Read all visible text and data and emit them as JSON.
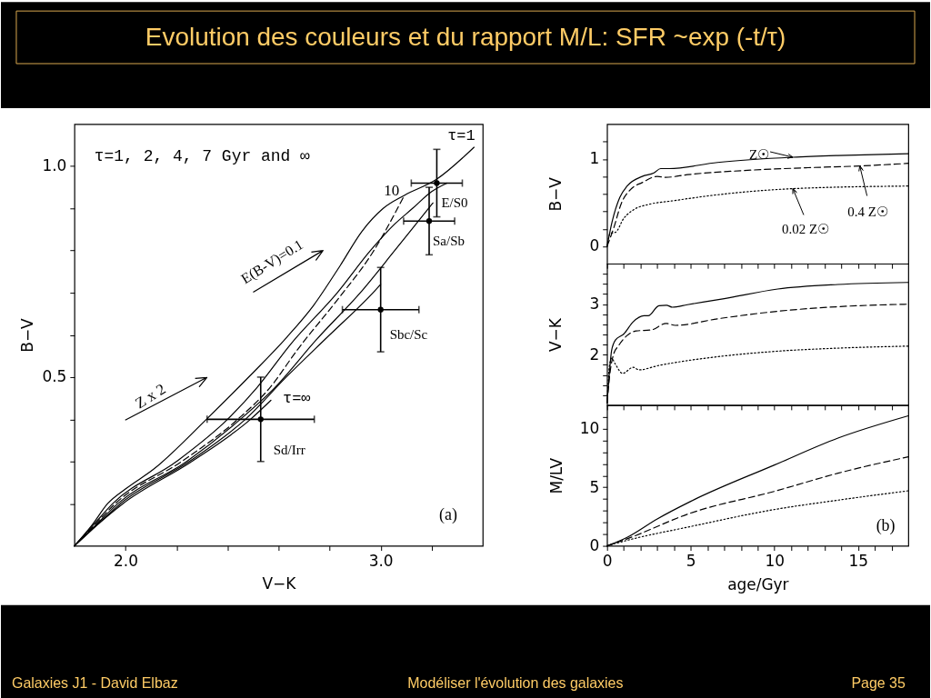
{
  "chart_data": [
    {
      "type": "line",
      "title": "Evolution des couleurs et du rapport M/L: SFR ~exp (-t/τ)",
      "xlabel": "V−K",
      "ylabel": "B−V",
      "xlim": [
        1.8,
        3.4
      ],
      "ylim": [
        0.1,
        1.1
      ],
      "xticks": [
        {
          "value": 2,
          "label": "2.0"
        },
        {
          "value": 2.2,
          "label": null
        },
        {
          "value": 2.4,
          "label": null
        },
        {
          "value": 2.6,
          "label": null
        },
        {
          "value": 2.8,
          "label": null
        },
        {
          "value": 3,
          "label": "3.0"
        },
        {
          "value": 3.2,
          "label": null
        }
      ],
      "yticks": [
        {
          "value": 0.2,
          "label": null
        },
        {
          "value": 0.3,
          "label": null
        },
        {
          "value": 0.4,
          "label": null
        },
        {
          "value": 0.5,
          "label": "0.5"
        },
        {
          "value": 0.6,
          "label": null
        },
        {
          "value": 0.7,
          "label": null
        },
        {
          "value": 0.8,
          "label": null
        },
        {
          "value": 0.9,
          "label": null
        },
        {
          "value": 1,
          "label": "1.0"
        }
      ],
      "line_style": "solid",
      "series": [
        {
          "name": "τ=1",
          "color": "#000000",
          "x": [
            1.8,
            1.87,
            1.93,
            2.005,
            2.109,
            2.319,
            2.486,
            2.633,
            2.737,
            2.842,
            2.926,
            3.01,
            3.093,
            3.219,
            3.366
          ],
          "values": [
            0.1,
            0.15,
            0.2,
            0.237,
            0.281,
            0.401,
            0.502,
            0.595,
            0.67,
            0.765,
            0.845,
            0.9,
            0.931,
            0.969,
            1.045
          ]
        },
        {
          "color": "#000000",
          "x": [
            1.8,
            1.875,
            1.95,
            2.2,
            2.4,
            2.515,
            2.65,
            2.83,
            2.96,
            3.05,
            3.125,
            3.2,
            3.26
          ],
          "values": [
            0.1,
            0.15,
            0.2,
            0.3,
            0.4,
            0.475,
            0.58,
            0.7,
            0.8,
            0.86,
            0.9,
            0.94,
            0.96
          ]
        },
        {
          "color": "#000000",
          "line_style": "dashed",
          "x": [
            1.8,
            1.88,
            1.96,
            2.22,
            2.44,
            2.566,
            2.674,
            2.842,
            2.966,
            3.093
          ],
          "values": [
            0.1,
            0.15,
            0.2,
            0.3,
            0.4,
            0.475,
            0.565,
            0.692,
            0.793,
            0.931
          ]
        },
        {
          "color": "#000000",
          "x": [
            1.8,
            1.885,
            1.97,
            2.24,
            2.45,
            2.585,
            2.75,
            2.92,
            3.055,
            3.205
          ],
          "values": [
            0.1,
            0.15,
            0.2,
            0.3,
            0.4,
            0.475,
            0.59,
            0.7,
            0.8,
            0.913
          ]
        },
        {
          "color": "#000000",
          "x": [
            1.8,
            1.89,
            1.98,
            2.25,
            2.47,
            2.63,
            2.8,
            2.97,
            3.0
          ],
          "values": [
            0.1,
            0.15,
            0.2,
            0.3,
            0.4,
            0.5,
            0.6,
            0.7,
            0.72
          ]
        },
        {
          "name": "τ=∞",
          "color": "#000000",
          "x": [
            1.8,
            1.89,
            1.99,
            2.26,
            2.49,
            2.57
          ],
          "values": [
            0.1,
            0.15,
            0.2,
            0.3,
            0.4,
            0.445
          ]
        },
        {
          "type": "scatter",
          "marker": "circle",
          "color": "#000000",
          "x": [
            3.22,
            3.19,
            3.0,
            2.53
          ],
          "values": [
            0.96,
            0.87,
            0.66,
            0.4
          ],
          "errors": [
            0.08,
            0.08,
            0.1,
            0.1
          ],
          "xerrors": [
            0.1,
            0.1,
            0.15,
            0.21
          ]
        }
      ],
      "annotations": [
        "τ=1, 2, 4, 7 Gyr and ∞",
        {
          "text": "10",
          "x": 3.093,
          "y": 0.931
        },
        {
          "text": "E/S0",
          "x": 3.22,
          "y": 0.96
        },
        {
          "text": "Sa/Sb",
          "x": 3.19,
          "y": 0.87
        },
        {
          "text": "Sbc/Sc",
          "x": 3.0,
          "y": 0.66
        },
        {
          "text": "Sd/Irr",
          "x": 2.53,
          "y": 0.4
        },
        "E(B-V)=0.1",
        "Z x 2",
        "(a)"
      ]
    },
    {
      "type": "line",
      "ylabel": "B−V",
      "xlim": [
        0,
        18
      ],
      "ylim": [
        -0.2,
        1.4
      ],
      "tick_labels": "y",
      "line_style": "solid",
      "xticks": [
        0,
        {
          "value": 1,
          "label": null
        },
        {
          "value": 2,
          "label": null
        },
        {
          "value": 3,
          "label": null
        },
        {
          "value": 4,
          "label": null
        },
        5,
        {
          "value": 6,
          "label": null
        },
        {
          "value": 7,
          "label": null
        },
        {
          "value": 8,
          "label": null
        },
        {
          "value": 9,
          "label": null
        },
        10,
        {
          "value": 11,
          "label": null
        },
        {
          "value": 12,
          "label": null
        },
        {
          "value": 13,
          "label": null
        },
        {
          "value": 14,
          "label": null
        },
        15,
        {
          "value": 16,
          "label": null
        },
        {
          "value": 17,
          "label": null
        }
      ],
      "yticks": [
        0,
        {
          "value": 0.2,
          "label": null
        },
        {
          "value": 0.4,
          "label": null
        },
        {
          "value": 0.6,
          "label": null
        },
        {
          "value": 0.8,
          "label": null
        },
        1,
        {
          "value": 1.2,
          "label": null
        }
      ],
      "series": [
        {
          "color": "#000000",
          "x": [
            0,
            0.3,
            0.76,
            1.2,
            2.1,
            2.8,
            3.2,
            3.7,
            6.6,
            11.1,
            13.8,
            18
          ],
          "values": [
            0,
            0.28,
            0.56,
            0.69,
            0.8,
            0.84,
            0.89,
            0.89,
            0.96,
            1.02,
            1.04,
            1.06
          ]
        },
        {
          "color": "#000000",
          "line_style": "dashed",
          "x": [
            0,
            0.4,
            0.85,
            1.4,
            2.1,
            3.0,
            3.5,
            4.8,
            8.4,
            12,
            15.1,
            18
          ],
          "values": [
            0,
            0.21,
            0.49,
            0.65,
            0.73,
            0.8,
            0.79,
            0.82,
            0.87,
            0.9,
            0.92,
            0.95
          ]
        },
        {
          "color": "#000000",
          "line_style": "dotted",
          "x": [
            0,
            0.2,
            0.5,
            1.0,
            1.6,
            2.5,
            3.9,
            6.6,
            11.1,
            18
          ],
          "values": [
            0,
            0.15,
            0.16,
            0.32,
            0.42,
            0.48,
            0.52,
            0.59,
            0.66,
            0.69
          ]
        }
      ],
      "annotations": [
        {
          "text": "Z☉",
          "x": 11.1,
          "y": 1.02
        },
        {
          "text": "0.4 Z☉",
          "x": 15.1,
          "y": 0.92
        },
        {
          "text": "0.02 Z☉",
          "x": 11.1,
          "y": 0.66
        }
      ]
    },
    {
      "type": "line",
      "ylabel": "V−K",
      "xlim": [
        0,
        18
      ],
      "ylim": [
        1,
        3.8
      ],
      "tick_labels": "y",
      "line_style": "solid",
      "xticks": [
        0,
        {
          "value": 1,
          "label": null
        },
        {
          "value": 2,
          "label": null
        },
        {
          "value": 3,
          "label": null
        },
        {
          "value": 4,
          "label": null
        },
        5,
        {
          "value": 6,
          "label": null
        },
        {
          "value": 7,
          "label": null
        },
        {
          "value": 8,
          "label": null
        },
        {
          "value": 9,
          "label": null
        },
        10,
        {
          "value": 11,
          "label": null
        },
        {
          "value": 12,
          "label": null
        },
        {
          "value": 13,
          "label": null
        },
        {
          "value": 14,
          "label": null
        },
        15,
        {
          "value": 16,
          "label": null
        },
        {
          "value": 17,
          "label": null
        }
      ],
      "yticks": [
        {
          "value": 1.2,
          "label": null
        },
        {
          "value": 1.4,
          "label": null
        },
        {
          "value": 1.6,
          "label": null
        },
        {
          "value": 1.8,
          "label": null
        },
        2,
        {
          "value": 2.2,
          "label": null
        },
        {
          "value": 2.4,
          "label": null
        },
        {
          "value": 2.6,
          "label": null
        },
        {
          "value": 2.8,
          "label": null
        },
        3,
        {
          "value": 3.2,
          "label": null
        },
        {
          "value": 3.4,
          "label": null
        },
        {
          "value": 3.6,
          "label": null
        }
      ],
      "series": [
        {
          "color": "#000000",
          "x": [
            0,
            0.13,
            0.27,
            0.5,
            1.0,
            1.56,
            2.2,
            2.46,
            3.1,
            3.55,
            3.9,
            4.8,
            7.0,
            10.2,
            13.8,
            18
          ],
          "values": [
            1.05,
            1.6,
            2.08,
            2.29,
            2.41,
            2.65,
            2.77,
            2.77,
            2.97,
            2.98,
            2.94,
            2.99,
            3.11,
            3.3,
            3.39,
            3.43
          ]
        },
        {
          "color": "#000000",
          "line_style": "dashed",
          "x": [
            0,
            0.2,
            0.4,
            0.67,
            1.2,
            1.74,
            2.64,
            3.54,
            4.08,
            6.6,
            10.2,
            13.8,
            18
          ],
          "values": [
            1.05,
            1.7,
            2.02,
            2.17,
            2.38,
            2.47,
            2.49,
            2.62,
            2.58,
            2.71,
            2.86,
            2.95,
            3.0
          ]
        },
        {
          "color": "#000000",
          "line_style": "dotted",
          "x": [
            0,
            0.15,
            0.27,
            0.5,
            0.93,
            1.56,
            1.92,
            3.0,
            6.6,
            10.2,
            13.8,
            18
          ],
          "values": [
            1.05,
            1.8,
            1.93,
            1.81,
            1.63,
            1.75,
            1.7,
            1.78,
            1.96,
            2.07,
            2.13,
            2.17
          ]
        }
      ]
    },
    {
      "type": "line",
      "xlabel": "age/Gyr",
      "ylabel": "M/LV",
      "xlim": [
        0,
        18
      ],
      "ylim": [
        0,
        12
      ],
      "line_style": "solid",
      "xticks": [
        0,
        {
          "value": 1,
          "label": null
        },
        {
          "value": 2,
          "label": null
        },
        {
          "value": 3,
          "label": null
        },
        {
          "value": 4,
          "label": null
        },
        5,
        {
          "value": 6,
          "label": null
        },
        {
          "value": 7,
          "label": null
        },
        {
          "value": 8,
          "label": null
        },
        {
          "value": 9,
          "label": null
        },
        10,
        {
          "value": 11,
          "label": null
        },
        {
          "value": 12,
          "label": null
        },
        {
          "value": 13,
          "label": null
        },
        {
          "value": 14,
          "label": null
        },
        15,
        {
          "value": 16,
          "label": null
        },
        {
          "value": 17,
          "label": null
        }
      ],
      "yticks": [
        0,
        {
          "value": 1,
          "label": null
        },
        {
          "value": 2,
          "label": null
        },
        {
          "value": 3,
          "label": null
        },
        {
          "value": 4,
          "label": null
        },
        5,
        {
          "value": 6,
          "label": null
        },
        {
          "value": 7,
          "label": null
        },
        {
          "value": 8,
          "label": null
        },
        {
          "value": 9,
          "label": null
        },
        10,
        {
          "value": 11,
          "label": null
        }
      ],
      "series": [
        {
          "color": "#000000",
          "x": [
            0,
            1.2,
            3.0,
            5.0,
            10,
            13.8,
            18
          ],
          "values": [
            0,
            0.73,
            2.3,
            3.8,
            6.9,
            9.2,
            11.1
          ]
        },
        {
          "color": "#000000",
          "line_style": "dashed",
          "x": [
            0,
            1.2,
            5,
            10,
            13.8,
            18
          ],
          "values": [
            0,
            0.6,
            2.8,
            4.65,
            6.2,
            7.6
          ]
        },
        {
          "color": "#000000",
          "line_style": "dotted",
          "x": [
            0,
            1.2,
            5,
            10,
            13.8,
            18
          ],
          "values": [
            0,
            0.47,
            1.65,
            3.1,
            3.9,
            4.7
          ]
        }
      ],
      "annotations": [
        "(b)",
        "Galaxies J1 - David Elbaz",
        "Modéliser l'évolution des galaxies",
        "Page 35"
      ]
    }
  ]
}
